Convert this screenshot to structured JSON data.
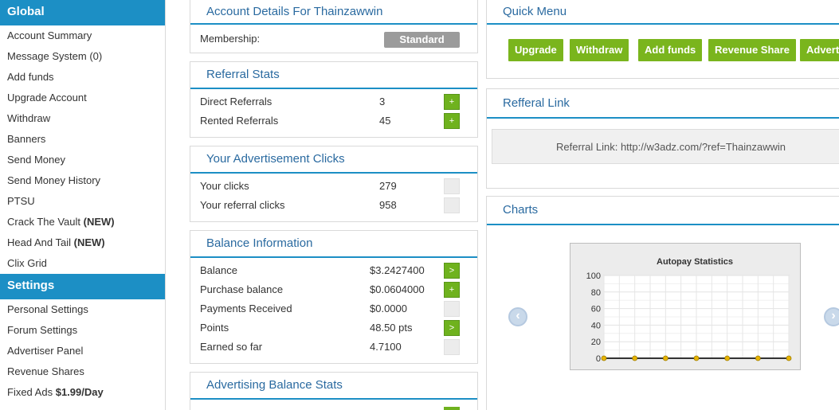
{
  "sidebar": {
    "global_title": "Global",
    "global_items": [
      {
        "label": "Account Summary",
        "tag": ""
      },
      {
        "label": "Message System (0)",
        "tag": ""
      },
      {
        "label": "Add funds",
        "tag": ""
      },
      {
        "label": "Upgrade Account",
        "tag": ""
      },
      {
        "label": "Withdraw",
        "tag": ""
      },
      {
        "label": "Banners",
        "tag": ""
      },
      {
        "label": "Send Money",
        "tag": ""
      },
      {
        "label": "Send Money History",
        "tag": ""
      },
      {
        "label": "PTSU",
        "tag": ""
      },
      {
        "label": "Crack The Vault",
        "tag": "(NEW)"
      },
      {
        "label": "Head And Tail",
        "tag": "(NEW)"
      },
      {
        "label": "Clix Grid",
        "tag": ""
      }
    ],
    "settings_title": "Settings",
    "settings_items": [
      {
        "label": "Personal Settings",
        "tag": ""
      },
      {
        "label": "Forum Settings",
        "tag": ""
      },
      {
        "label": "Advertiser Panel",
        "tag": ""
      },
      {
        "label": "Revenue Shares",
        "tag": ""
      },
      {
        "label": "Fixed Ads",
        "tag": "$1.99/Day"
      }
    ]
  },
  "account": {
    "title": "Account Details For Thainzawwin",
    "membership_label": "Membership:",
    "membership_value": "Standard"
  },
  "referral_stats": {
    "title": "Referral Stats",
    "rows": [
      {
        "label": "Direct Referrals",
        "value": "3",
        "button": "+"
      },
      {
        "label": "Rented Referrals",
        "value": "45",
        "button": "+"
      }
    ]
  },
  "ad_clicks": {
    "title": "Your Advertisement Clicks",
    "rows": [
      {
        "label": "Your clicks",
        "value": "279"
      },
      {
        "label": "Your referral clicks",
        "value": "958"
      }
    ]
  },
  "balance": {
    "title": "Balance Information",
    "rows": [
      {
        "label": "Balance",
        "value": "$3.2427400",
        "button": ">"
      },
      {
        "label": "Purchase balance",
        "value": "$0.0604000",
        "button": "+"
      },
      {
        "label": "Payments Received",
        "value": "$0.0000",
        "button": ""
      },
      {
        "label": "Points",
        "value": "48.50 pts",
        "button": ">"
      },
      {
        "label": "Earned so far",
        "value": "4.7100",
        "button": ""
      }
    ]
  },
  "ad_balance": {
    "title": "Advertising Balance Stats"
  },
  "quick_menu": {
    "title": "Quick Menu",
    "buttons": [
      "Upgrade",
      "Withdraw",
      "Add funds",
      "Revenue Share",
      "Advert"
    ]
  },
  "referral_link": {
    "title": "Refferal Link",
    "text": "Referral Link: http://w3adz.com/?ref=Thainzawwin"
  },
  "charts": {
    "title": "Charts",
    "prev_icon": "arrow-left-circle-icon",
    "next_icon": "arrow-right-circle-icon"
  },
  "chart_data": {
    "type": "line",
    "title": "Autopay Statistics",
    "xlabel": "",
    "ylabel": "",
    "ylim": [
      0,
      100
    ],
    "yticks": [
      "100",
      "80",
      "60",
      "40",
      "20",
      "0"
    ],
    "x": [
      1,
      2,
      3,
      4,
      5,
      6,
      7
    ],
    "series": [
      {
        "values": [
          0,
          0,
          0,
          0,
          0,
          0,
          0
        ]
      }
    ],
    "colors": {
      "line": "#333333",
      "point": "#e8b400"
    }
  }
}
